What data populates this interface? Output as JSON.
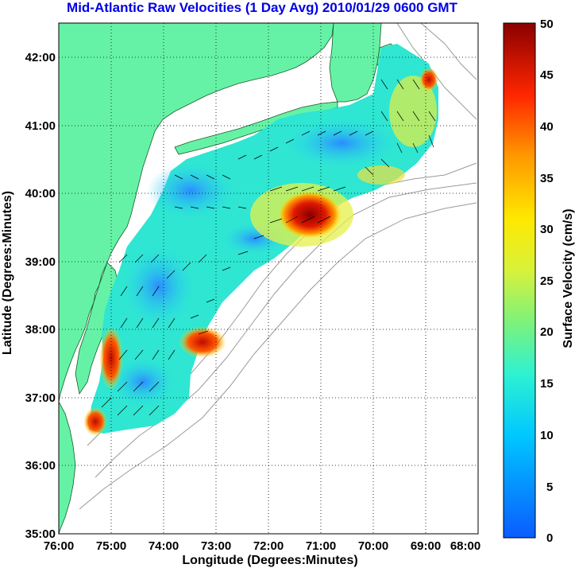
{
  "title": "Mid-Atlantic Raw Velocities (1 Day Avg) 2010/01/29 0600 GMT",
  "axes": {
    "x_label": "Longitude (Degrees:Minutes)",
    "y_label": "Latitude (Degrees:Minutes)",
    "x_ticks": [
      "76:00",
      "75:00",
      "74:00",
      "73:00",
      "72:00",
      "71:00",
      "70:00",
      "69:00",
      "68:00"
    ],
    "y_ticks": [
      "42:00",
      "41:00",
      "40:00",
      "39:00",
      "38:00",
      "37:00",
      "36:00",
      "35:00"
    ],
    "x_range": [
      -76,
      -68
    ],
    "y_range": [
      35,
      42.5
    ],
    "grid": true
  },
  "colorbar": {
    "label": "Surface Velocity (cm/s)",
    "ticks": [
      "50",
      "45",
      "40",
      "35",
      "30",
      "25",
      "20",
      "15",
      "10",
      "5",
      "0"
    ],
    "range": [
      0,
      50
    ],
    "colormap": "jet"
  },
  "colors": {
    "land": "#66f2a6",
    "title": "#0000e6",
    "background": "#ffffff",
    "bathymetry": "#9a9a9a"
  }
}
